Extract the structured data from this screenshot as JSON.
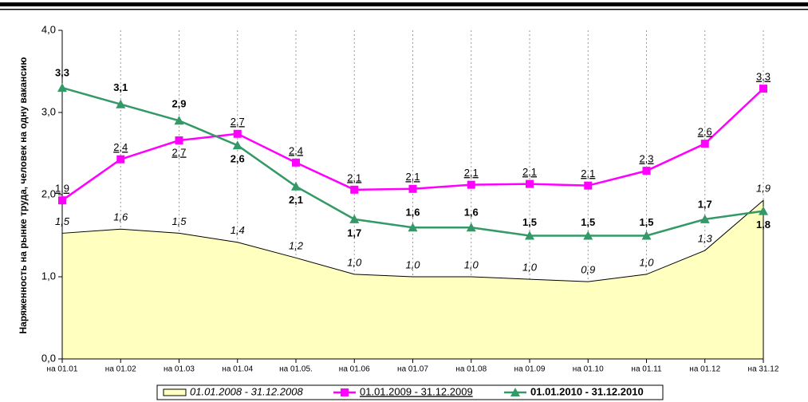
{
  "chart_data": {
    "type": "line",
    "y_label": "Наряженность на рынке труда, человек на одну вакансию",
    "categories": [
      "на 01.01",
      "на 01.02",
      "на 01.03",
      "на 01.04",
      "на 01.05.",
      "на 01.06",
      "на 01.07",
      "на 01.08",
      "на 01.09",
      "на 01.10",
      "на 01.11",
      "на 01.12",
      "на 31.12"
    ],
    "ylim": [
      0,
      4
    ],
    "yticks": [
      {
        "value": 0,
        "label": "0,0"
      },
      {
        "value": 1,
        "label": "1,0"
      },
      {
        "value": 2,
        "label": "2,0"
      },
      {
        "value": 3,
        "label": "3,0"
      },
      {
        "value": 4,
        "label": "4,0"
      }
    ],
    "series": [
      {
        "name": "01.01.2008 - 31.12.2008",
        "color": "#ffffc0",
        "style": "area",
        "values": [
          1.53,
          1.58,
          1.53,
          1.42,
          1.23,
          1.03,
          1.0,
          1.0,
          0.97,
          0.94,
          1.03,
          1.32,
          1.93
        ],
        "value_labels": [
          "1,5",
          "1,6",
          "1,5",
          "1,4",
          "1,2",
          "1,0",
          "1,0",
          "1,0",
          "1,0",
          "0,9",
          "1,0",
          "1,3",
          "1,9"
        ]
      },
      {
        "name": "01.01.2009 - 31.12.2009",
        "color": "#ff00ff",
        "style": "square",
        "values": [
          1.93,
          2.43,
          2.66,
          2.74,
          2.39,
          2.06,
          2.07,
          2.12,
          2.13,
          2.11,
          2.29,
          2.62,
          3.29
        ],
        "value_labels": [
          "1,9",
          "2,4",
          "2,7",
          "2,7",
          "2,4",
          "2,1",
          "2,1",
          "2,1",
          "2,1",
          "2,1",
          "2,3",
          "2,6",
          "3,3"
        ]
      },
      {
        "name": "01.01.2010 - 31.12.2010",
        "color": "#339966",
        "style": "triangle",
        "values": [
          3.3,
          3.1,
          2.9,
          2.6,
          2.1,
          1.7,
          1.6,
          1.6,
          1.5,
          1.5,
          1.5,
          1.7,
          1.8
        ],
        "value_labels": [
          "3,3",
          "3,1",
          "2,9",
          "2,6",
          "2,1",
          "1,7",
          "1,6",
          "1,6",
          "1,5",
          "1,5",
          "1,5",
          "1,7",
          "1,8"
        ]
      }
    ]
  }
}
